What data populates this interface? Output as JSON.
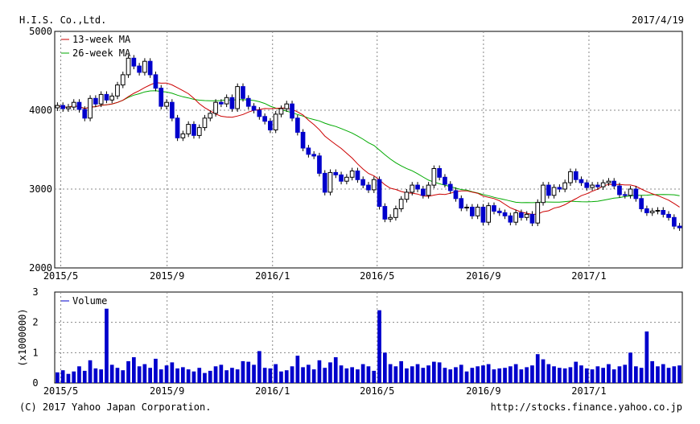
{
  "header": {
    "company": "H.I.S. Co.,Ltd.",
    "date": "2017/4/19"
  },
  "footer": {
    "copyright": "(C) 2017 Yahoo Japan Corporation.",
    "url": "http://stocks.finance.yahoo.co.jp"
  },
  "colors": {
    "up_candle": "#ffffff",
    "down_candle": "#0000cc",
    "ma13": "#cc0000",
    "ma26": "#00aa00",
    "volume": "#0000cc",
    "grid": "#888888"
  },
  "chart_data": [
    {
      "type": "candlestick",
      "title": "H.I.S. Co.,Ltd.",
      "date": "2017/4/19",
      "period": "weekly",
      "start_date": "2015-04-24",
      "end_date": "2017-04-19",
      "ylim": [
        2000,
        5000
      ],
      "yticks": [
        2000,
        3000,
        4000,
        5000
      ],
      "xticks": [
        "2015/5",
        "2015/9",
        "2016/1",
        "2016/5",
        "2016/9",
        "2017/1"
      ],
      "grid": true,
      "legend_position": "top-left",
      "legend": [
        "13-week MA",
        "26-week MA"
      ],
      "close": [
        4060,
        4020,
        4040,
        4100,
        4010,
        3900,
        4150,
        4080,
        4200,
        4130,
        4180,
        4320,
        4450,
        4660,
        4560,
        4480,
        4620,
        4450,
        4280,
        4050,
        4100,
        3900,
        3650,
        3700,
        3820,
        3680,
        3780,
        3900,
        3960,
        4100,
        4080,
        4160,
        4020,
        4300,
        4150,
        4050,
        4000,
        3920,
        3860,
        3750,
        3950,
        4020,
        4080,
        3900,
        3720,
        3520,
        3440,
        3420,
        3200,
        2960,
        3210,
        3180,
        3100,
        3150,
        3230,
        3120,
        3050,
        2990,
        3120,
        2780,
        2620,
        2640,
        2750,
        2870,
        2960,
        3050,
        3000,
        2920,
        3050,
        3260,
        3150,
        3060,
        2980,
        2880,
        2760,
        2770,
        2660,
        2770,
        2580,
        2790,
        2720,
        2700,
        2660,
        2580,
        2700,
        2640,
        2680,
        2570,
        2830,
        3050,
        2920,
        3020,
        3000,
        3080,
        3220,
        3120,
        3080,
        3020,
        3050,
        3030,
        3080,
        3100,
        3040,
        2930,
        2920,
        3000,
        2880,
        2750,
        2700,
        2720,
        2730,
        2680,
        2640,
        2530,
        2510
      ],
      "volume_label": "Volume",
      "volume_unit": "(x1000000)",
      "volume_ylim": [
        0,
        3
      ],
      "volume_yticks": [
        0,
        1,
        2,
        3
      ],
      "volume": [
        0.35,
        0.42,
        0.3,
        0.38,
        0.55,
        0.4,
        0.75,
        0.48,
        0.45,
        2.45,
        0.6,
        0.5,
        0.42,
        0.72,
        0.85,
        0.55,
        0.62,
        0.5,
        0.8,
        0.45,
        0.58,
        0.68,
        0.48,
        0.52,
        0.45,
        0.38,
        0.5,
        0.33,
        0.4,
        0.55,
        0.6,
        0.42,
        0.5,
        0.45,
        0.72,
        0.7,
        0.6,
        1.05,
        0.5,
        0.48,
        0.62,
        0.38,
        0.42,
        0.55,
        0.9,
        0.52,
        0.6,
        0.45,
        0.75,
        0.5,
        0.68,
        0.85,
        0.58,
        0.48,
        0.52,
        0.45,
        0.62,
        0.55,
        0.4,
        2.4,
        1.0,
        0.62,
        0.55,
        0.72,
        0.48,
        0.55,
        0.62,
        0.5,
        0.58,
        0.7,
        0.68,
        0.5,
        0.45,
        0.52,
        0.6,
        0.38,
        0.5,
        0.55,
        0.58,
        0.62,
        0.45,
        0.48,
        0.5,
        0.55,
        0.62,
        0.45,
        0.52,
        0.58,
        0.95,
        0.78,
        0.62,
        0.55,
        0.5,
        0.48,
        0.52,
        0.7,
        0.58,
        0.48,
        0.45,
        0.55,
        0.5,
        0.62,
        0.45,
        0.55,
        0.6,
        1.0,
        0.55,
        0.5,
        1.7,
        0.72,
        0.55,
        0.62,
        0.5,
        0.55,
        0.58
      ]
    }
  ]
}
